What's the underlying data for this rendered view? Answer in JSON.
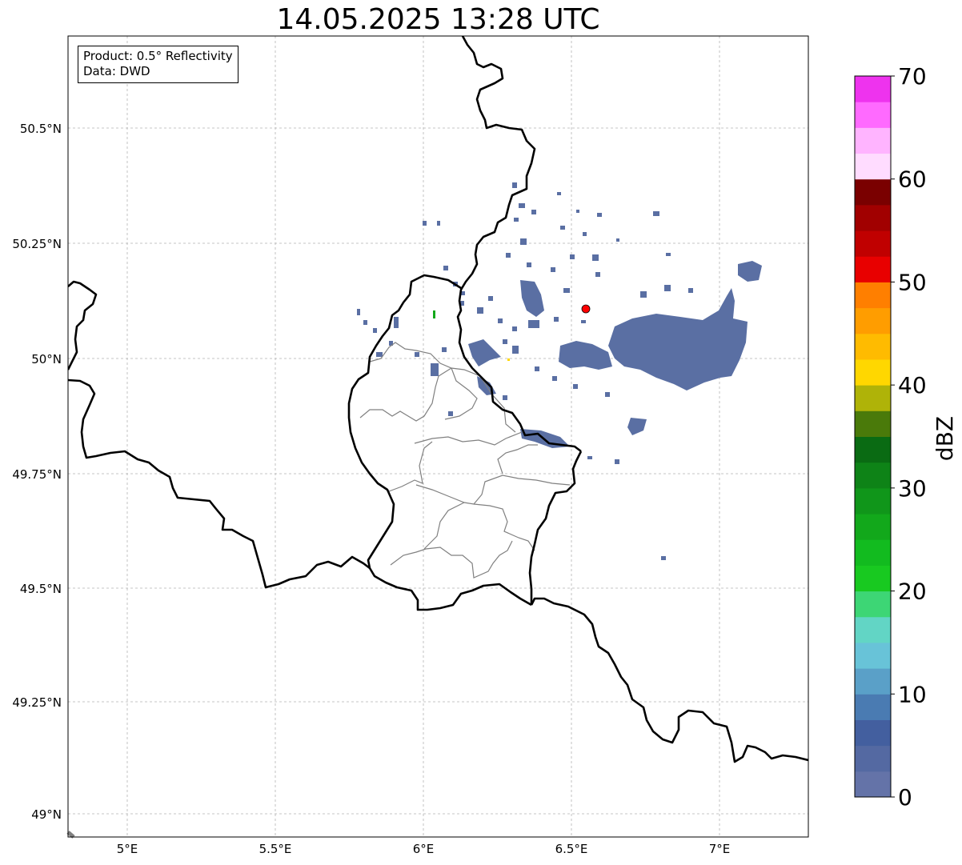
{
  "title": "14.05.2025 13:28 UTC",
  "info_box": {
    "product": "Product: 0.5° Reflectivity",
    "data_source": "Data: DWD"
  },
  "map": {
    "lon_range": [
      4.8,
      7.3
    ],
    "lat_range": [
      48.95,
      50.7
    ],
    "grid": true,
    "lon_ticks": [
      {
        "value": 5.0,
        "label": "5°E"
      },
      {
        "value": 5.5,
        "label": "5.5°E"
      },
      {
        "value": 6.0,
        "label": "6°E"
      },
      {
        "value": 6.5,
        "label": "6.5°E"
      },
      {
        "value": 7.0,
        "label": "7°E"
      }
    ],
    "lat_ticks": [
      {
        "value": 50.5,
        "label": "50.5°N"
      },
      {
        "value": 50.25,
        "label": "50.25°N"
      },
      {
        "value": 50.0,
        "label": "50°N"
      },
      {
        "value": 49.75,
        "label": "49.75°N"
      },
      {
        "value": 49.5,
        "label": "49.5°N"
      },
      {
        "value": 49.25,
        "label": "49.25°N"
      },
      {
        "value": 49.0,
        "label": "49°N"
      }
    ],
    "radar_site": {
      "lon": 6.548,
      "lat": 50.11,
      "color": "#ff0000"
    }
  },
  "colorbar": {
    "label": "dBZ",
    "min": 0,
    "max": 70,
    "ticks": [
      "0",
      "10",
      "20",
      "30",
      "40",
      "50",
      "60",
      "70"
    ],
    "colors": [
      "#6473a8",
      "#5469a2",
      "#435f9f",
      "#4a7bb2",
      "#5aa0c8",
      "#68c3d8",
      "#62d5c5",
      "#3dd675",
      "#18c920",
      "#12bb1f",
      "#12a81b",
      "#10961a",
      "#0e8317",
      "#0a6b13",
      "#4a7a0a",
      "#afb308",
      "#ffd700",
      "#ffbb00",
      "#ff9d00",
      "#ff7f00",
      "#e80000",
      "#c00000",
      "#a10000",
      "#7a0000",
      "#ffdcff",
      "#ffb4ff",
      "#ff6aff",
      "#ee33ee"
    ]
  }
}
